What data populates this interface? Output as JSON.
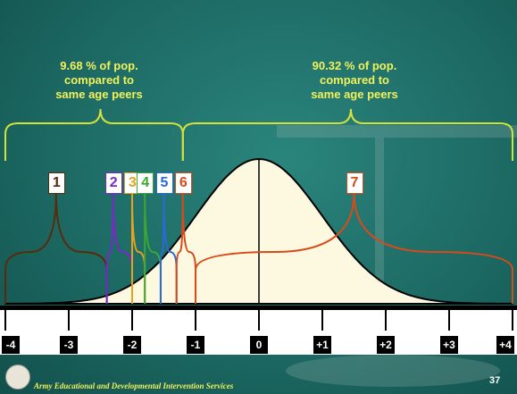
{
  "colors": {
    "bell_fill": "#fdf8e0",
    "bracket": "#d4e23c",
    "label_text": "#f2f25a",
    "axis_band": "#ffffff"
  },
  "annotations": {
    "left": {
      "percent": "9.68 % of pop.",
      "line2": "compared to",
      "line3": "same age peers"
    },
    "right": {
      "percent": "90.32 % of pop.",
      "line2": "compared to",
      "line3": "same age peers"
    }
  },
  "chart_data": {
    "type": "area",
    "title": "",
    "xlabel": "",
    "ylabel": "",
    "xlim": [
      -4,
      4
    ],
    "distribution": "standard normal",
    "tick_labels": [
      "-4",
      "-3",
      "-2",
      "-1",
      "0",
      "+1",
      "+2",
      "+3",
      "+4"
    ],
    "markers": [
      {
        "label": "1",
        "center": -3.2,
        "left": -4.0,
        "right": -2.4,
        "color": "#5a2a0a"
      },
      {
        "label": "2",
        "center": -2.3,
        "left": -2.4,
        "right": -2.0,
        "color": "#7a28c8"
      },
      {
        "label": "3",
        "center": -2.0,
        "left": -2.0,
        "right": -1.8,
        "color": "#e8a020"
      },
      {
        "label": "4",
        "center": -1.8,
        "left": -1.8,
        "right": -1.55,
        "color": "#3aa830"
      },
      {
        "label": "5",
        "center": -1.5,
        "left": -1.55,
        "right": -1.3,
        "color": "#2a6ad8"
      },
      {
        "label": "6",
        "center": -1.2,
        "left": -1.3,
        "right": -1.0,
        "color": "#d84a1a"
      },
      {
        "label": "7",
        "center": 1.5,
        "left": -1.0,
        "right": 4.0,
        "color": "#d84a1a"
      }
    ],
    "mean_line": 0
  },
  "footer": {
    "organization": "Army Educational and Developmental Intervention Services",
    "page": "37"
  }
}
